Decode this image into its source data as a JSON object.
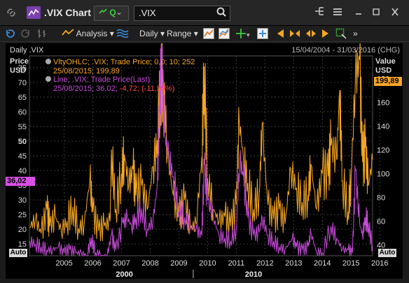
{
  "window": {
    "title": ".VIX Chart",
    "quote_label": "Q",
    "search_value": ".VIX"
  },
  "toolbar": {
    "analysis_label": "Analysis",
    "interval_label": "Daily",
    "range_label": "Range"
  },
  "chart_header": {
    "title": "Daily .VIX",
    "date_range": "15/04/2004 - 31/03/2016 (CHG)"
  },
  "legend": {
    "ohlc_line1": "VltyOHLC; .VIX; Trade Price;  0,0;  10;  252",
    "ohlc_line2": "25/08/2015;  199,89",
    "line_line1": "Line; .VIX; Trade Price(Last)",
    "line_line2_prefix": "25/08/2015;  36,02;",
    "line_line2_change": " -4,72;  (-11,59%)"
  },
  "axes": {
    "left_title1": "Price",
    "left_title2": "USD",
    "right_title1": "Value",
    "right_title2": "USD",
    "auto_label": "Auto",
    "last_left": "36,02",
    "last_right": "199,89"
  },
  "colors": {
    "volatility": "#f5a623",
    "price": "#c54bd6",
    "background": "#000000"
  },
  "chart_data": {
    "type": "line",
    "title": "Daily .VIX",
    "left_axis": {
      "label": "Price USD",
      "ticks": [
        15,
        20,
        25,
        30,
        35,
        40,
        45,
        50,
        55,
        60,
        65,
        70,
        75
      ],
      "range": [
        11,
        79
      ]
    },
    "right_axis": {
      "label": "Value USD",
      "ticks": [
        40,
        60,
        80,
        100,
        120,
        140,
        160,
        180
      ],
      "range": [
        31,
        199
      ]
    },
    "x_ticks": [
      "2005",
      "2006",
      "2007",
      "2008",
      "2009",
      "2010",
      "2011",
      "2012",
      "2013",
      "2014",
      "2015",
      "2016"
    ],
    "x_major_labels": [
      "2000",
      "2010"
    ],
    "x_range": [
      2004.29,
      2016.25
    ],
    "series": [
      {
        "name": "VltyOHLC; .VIX; Trade Price;  0,0;  10;  252",
        "axis": "right",
        "color": "#f5a623",
        "points": [
          [
            2004.3,
            55
          ],
          [
            2004.5,
            62
          ],
          [
            2004.7,
            50
          ],
          [
            2004.9,
            70
          ],
          [
            2005.0,
            56
          ],
          [
            2005.2,
            64
          ],
          [
            2005.4,
            52
          ],
          [
            2005.6,
            60
          ],
          [
            2005.8,
            72
          ],
          [
            2006.0,
            54
          ],
          [
            2006.2,
            58
          ],
          [
            2006.4,
            96
          ],
          [
            2006.5,
            68
          ],
          [
            2006.7,
            52
          ],
          [
            2006.9,
            56
          ],
          [
            2007.1,
            60
          ],
          [
            2007.15,
            120
          ],
          [
            2007.3,
            70
          ],
          [
            2007.5,
            100
          ],
          [
            2007.6,
            116
          ],
          [
            2007.75,
            90
          ],
          [
            2007.9,
            104
          ],
          [
            2008.0,
            82
          ],
          [
            2008.2,
            90
          ],
          [
            2008.4,
            70
          ],
          [
            2008.6,
            106
          ],
          [
            2008.75,
            128
          ],
          [
            2008.85,
            168
          ],
          [
            2008.95,
            186
          ],
          [
            2009.1,
            116
          ],
          [
            2009.3,
            82
          ],
          [
            2009.5,
            64
          ],
          [
            2009.7,
            78
          ],
          [
            2009.9,
            54
          ],
          [
            2010.1,
            58
          ],
          [
            2010.3,
            114
          ],
          [
            2010.38,
            190
          ],
          [
            2010.5,
            96
          ],
          [
            2010.7,
            70
          ],
          [
            2010.9,
            60
          ],
          [
            2011.1,
            64
          ],
          [
            2011.3,
            56
          ],
          [
            2011.5,
            74
          ],
          [
            2011.6,
            146
          ],
          [
            2011.75,
            112
          ],
          [
            2011.9,
            92
          ],
          [
            2012.1,
            70
          ],
          [
            2012.3,
            84
          ],
          [
            2012.4,
            142
          ],
          [
            2012.6,
            74
          ],
          [
            2012.8,
            62
          ],
          [
            2013.0,
            70
          ],
          [
            2013.2,
            58
          ],
          [
            2013.4,
            104
          ],
          [
            2013.6,
            88
          ],
          [
            2013.8,
            76
          ],
          [
            2014.0,
            82
          ],
          [
            2014.1,
            108
          ],
          [
            2014.3,
            70
          ],
          [
            2014.5,
            100
          ],
          [
            2014.7,
            98
          ],
          [
            2014.8,
            124
          ],
          [
            2015.0,
            112
          ],
          [
            2015.1,
            170
          ],
          [
            2015.2,
            94
          ],
          [
            2015.4,
            68
          ],
          [
            2015.5,
            96
          ],
          [
            2015.65,
            180
          ],
          [
            2015.8,
            196
          ],
          [
            2015.9,
            110
          ],
          [
            2016.0,
            122
          ],
          [
            2016.1,
            90
          ],
          [
            2016.25,
            112
          ]
        ]
      },
      {
        "name": "Line; .VIX; Trade Price(Last)",
        "axis": "left",
        "color": "#c54bd6",
        "points": [
          [
            2004.3,
            16
          ],
          [
            2004.5,
            15
          ],
          [
            2004.7,
            14
          ],
          [
            2004.9,
            13
          ],
          [
            2005.1,
            13
          ],
          [
            2005.3,
            14
          ],
          [
            2005.5,
            12
          ],
          [
            2005.7,
            13
          ],
          [
            2005.9,
            12
          ],
          [
            2006.1,
            12
          ],
          [
            2006.3,
            11
          ],
          [
            2006.45,
            17
          ],
          [
            2006.6,
            12
          ],
          [
            2006.8,
            11
          ],
          [
            2007.0,
            11
          ],
          [
            2007.15,
            18
          ],
          [
            2007.3,
            13
          ],
          [
            2007.55,
            22
          ],
          [
            2007.7,
            24
          ],
          [
            2007.85,
            21
          ],
          [
            2008.0,
            24
          ],
          [
            2008.2,
            27
          ],
          [
            2008.4,
            20
          ],
          [
            2008.6,
            23
          ],
          [
            2008.75,
            35
          ],
          [
            2008.82,
            60
          ],
          [
            2008.9,
            78
          ],
          [
            2009.0,
            52
          ],
          [
            2009.15,
            45
          ],
          [
            2009.3,
            38
          ],
          [
            2009.5,
            26
          ],
          [
            2009.7,
            24
          ],
          [
            2009.9,
            21
          ],
          [
            2010.1,
            20
          ],
          [
            2010.3,
            18
          ],
          [
            2010.38,
            42
          ],
          [
            2010.5,
            30
          ],
          [
            2010.7,
            24
          ],
          [
            2010.9,
            18
          ],
          [
            2011.1,
            17
          ],
          [
            2011.3,
            16
          ],
          [
            2011.5,
            20
          ],
          [
            2011.62,
            44
          ],
          [
            2011.75,
            38
          ],
          [
            2011.9,
            24
          ],
          [
            2012.1,
            18
          ],
          [
            2012.3,
            19
          ],
          [
            2012.4,
            24
          ],
          [
            2012.6,
            18
          ],
          [
            2012.8,
            16
          ],
          [
            2013.0,
            14
          ],
          [
            2013.2,
            13
          ],
          [
            2013.45,
            17
          ],
          [
            2013.6,
            14
          ],
          [
            2013.8,
            13
          ],
          [
            2014.0,
            14
          ],
          [
            2014.1,
            19
          ],
          [
            2014.3,
            12
          ],
          [
            2014.5,
            12
          ],
          [
            2014.8,
            21
          ],
          [
            2015.0,
            17
          ],
          [
            2015.2,
            13
          ],
          [
            2015.4,
            13
          ],
          [
            2015.55,
            12
          ],
          [
            2015.65,
            40
          ],
          [
            2015.8,
            22
          ],
          [
            2015.9,
            18
          ],
          [
            2016.0,
            24
          ],
          [
            2016.1,
            22
          ],
          [
            2016.25,
            14
          ]
        ]
      }
    ],
    "grid": true
  }
}
